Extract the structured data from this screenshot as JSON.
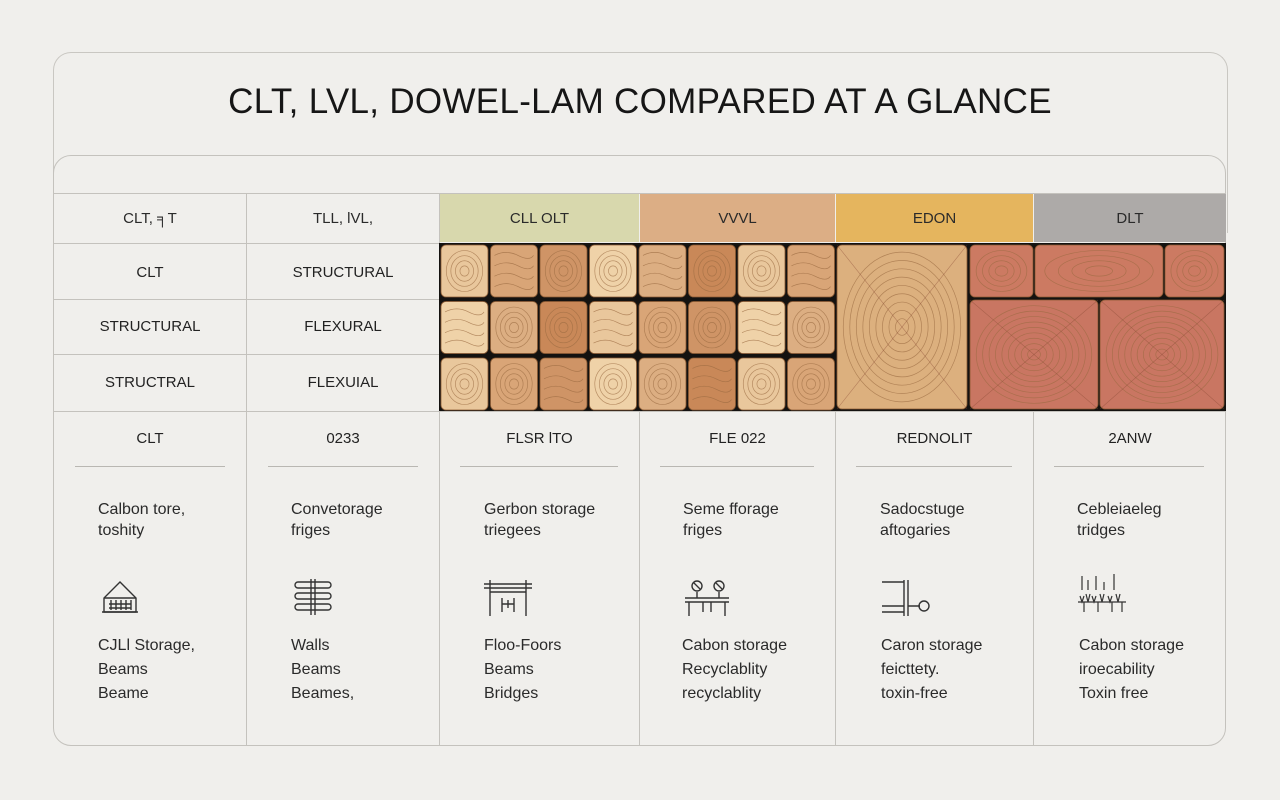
{
  "title": "CLT, LVL, DOWEL-LAM COMPARED AT A GLANCE",
  "columns": [
    {
      "header": "CLT, ╕T"
    },
    {
      "header": "TLL, lVL,"
    },
    {
      "header": "CLL OLT",
      "header_color": "#d8d8ad"
    },
    {
      "header": "VVVL",
      "header_color": "#dcae85"
    },
    {
      "header": "EDON",
      "header_color": "#e5b55e"
    },
    {
      "header": "DLT",
      "header_color": "#adaaa8"
    }
  ],
  "row_labels": [
    [
      "CLT",
      "STRUCTURAL"
    ],
    [
      "STRUCTURAL",
      "FLEXURAL"
    ],
    [
      "STRUCTRAL",
      "FLEXUIAL"
    ]
  ],
  "codes": [
    "CLT",
    "0233",
    "FLSR lTO",
    "FLE 022",
    "REDNOLIT",
    "2ANW"
  ],
  "descriptions": [
    "Calbon tore,\ntoshity",
    "Convetorage\nfriges",
    "Gerbon storage\ntriegees",
    "Seme fforage\nfriges",
    "Sadocstuge\naftogaries",
    "Cebleiaeleg\ntridges"
  ],
  "icons": [
    "house-icon",
    "stacked-layers-icon",
    "bridge-icon",
    "workbench-icon",
    "lever-icon",
    "ground-grass-icon"
  ],
  "uses": [
    [
      "CJLl Storage,",
      "Beams",
      "Beame"
    ],
    [
      "Walls",
      "Beams",
      "Beames,"
    ],
    [
      "Floo-Foors",
      "Beams",
      "Bridges"
    ],
    [
      "Cabon storage",
      "Recyclablity",
      "recyclablity"
    ],
    [
      "Caron  storage",
      "feicttety.",
      "toxin-free"
    ],
    [
      "Cabon storage",
      "iroecability",
      "Toxin free"
    ]
  ]
}
